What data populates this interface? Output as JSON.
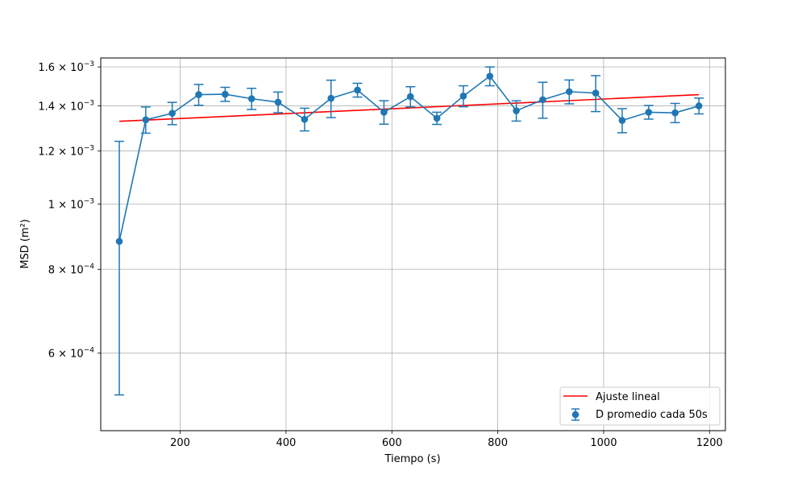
{
  "chart_data": {
    "type": "line",
    "xlabel": "Tiempo (s)",
    "ylabel": "MSD (m²)",
    "xlim": [
      50,
      1230
    ],
    "ylim": [
      0.00046,
      0.00165
    ],
    "y_scale": "log",
    "grid": true,
    "legend_position": "lower-right",
    "x_ticks": [
      {
        "value": 200,
        "label": "200"
      },
      {
        "value": 400,
        "label": "400"
      },
      {
        "value": 600,
        "label": "600"
      },
      {
        "value": 800,
        "label": "800"
      },
      {
        "value": 1000,
        "label": "1000"
      },
      {
        "value": 1200,
        "label": "1200"
      }
    ],
    "y_ticks": [
      {
        "value": 0.0006,
        "base": "6",
        "exp": "−4"
      },
      {
        "value": 0.0008,
        "base": "8",
        "exp": "−4"
      },
      {
        "value": 0.001,
        "base": "1",
        "exp": "−3"
      },
      {
        "value": 0.0012,
        "base": "1.2",
        "exp": "−3"
      },
      {
        "value": 0.0014,
        "base": "1.4",
        "exp": "−3"
      },
      {
        "value": 0.0016,
        "base": "1.6",
        "exp": "−3"
      }
    ],
    "series": [
      {
        "name": "D promedio cada 50s",
        "color": "#1f77b4",
        "x": [
          85,
          135,
          185,
          235,
          285,
          335,
          385,
          435,
          485,
          535,
          585,
          635,
          685,
          735,
          785,
          835,
          885,
          935,
          985,
          1035,
          1085,
          1135,
          1180
        ],
        "y": [
          0.00088,
          0.001335,
          0.001365,
          0.001455,
          0.001457,
          0.001435,
          0.001418,
          0.001337,
          0.001437,
          0.001478,
          0.00137,
          0.001445,
          0.001342,
          0.001448,
          0.00155,
          0.001377,
          0.00143,
          0.00147,
          0.001463,
          0.001332,
          0.00137,
          0.001367,
          0.0014
        ],
        "err": [
          0.00036,
          6e-05,
          5.2e-05,
          5.2e-05,
          3.5e-05,
          5.2e-05,
          5e-05,
          5.2e-05,
          9.2e-05,
          3.5e-05,
          5.5e-05,
          5e-05,
          2.8e-05,
          5.2e-05,
          5e-05,
          4.8e-05,
          8.8e-05,
          6e-05,
          9e-05,
          5.5e-05,
          3.2e-05,
          4.5e-05,
          3.8e-05
        ]
      },
      {
        "name": "Ajuste lineal",
        "color": "#ff0000",
        "x": [
          85,
          1180
        ],
        "y": [
          0.001328,
          0.001455
        ]
      }
    ],
    "legend": [
      {
        "label": "Ajuste lineal",
        "kind": "line",
        "color": "#ff0000"
      },
      {
        "label": "D promedio cada 50s",
        "kind": "errorbar",
        "color": "#1f77b4"
      }
    ]
  }
}
